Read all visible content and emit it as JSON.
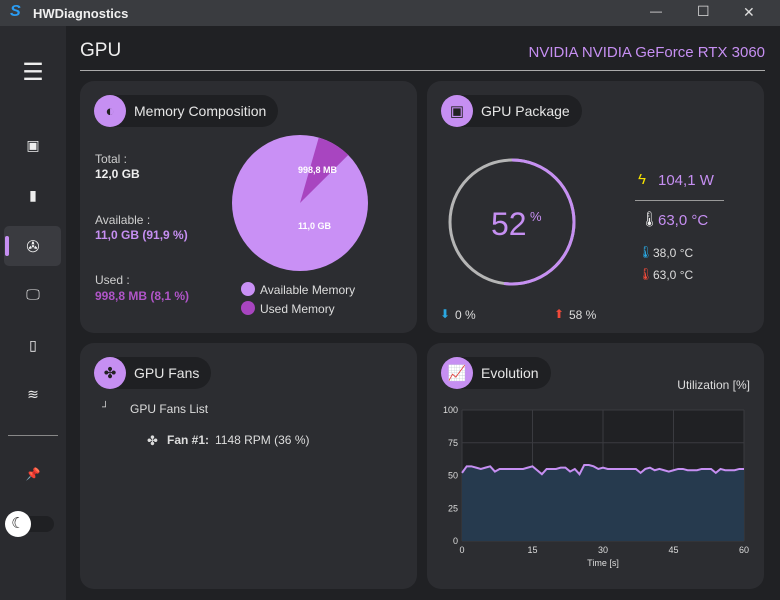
{
  "app": {
    "title": "HWDiagnostics"
  },
  "window_controls": {
    "minimize": "—",
    "maximize": "☐",
    "close": "✕"
  },
  "header": {
    "title": "GPU",
    "device": "NVIDIA NVIDIA GeForce RTX 3060"
  },
  "sidebar": {
    "items": [
      {
        "name": "menu",
        "icon": "☰"
      },
      {
        "name": "cpu",
        "icon": "▣"
      },
      {
        "name": "memory",
        "icon": "▮"
      },
      {
        "name": "gpu",
        "icon": "✇",
        "active": true
      },
      {
        "name": "display",
        "icon": "🖵"
      },
      {
        "name": "storage",
        "icon": "▯"
      },
      {
        "name": "network",
        "icon": "≋"
      },
      {
        "name": "pin",
        "icon": "📌"
      }
    ],
    "theme_icon": "☾"
  },
  "memory": {
    "title": "Memory Composition",
    "total_label": "Total :",
    "total": "12,0 GB",
    "available_label": "Available :",
    "available": "11,0 GB (91,9 %)",
    "used_label": "Used :",
    "used": "998,8 MB (8,1 %)",
    "pie_available_label": "11,0 GB",
    "pie_used_label": "998,8 MB",
    "legend_available": "Available Memory",
    "legend_used": "Used Memory",
    "available_pct": 91.9,
    "used_pct": 8.1,
    "color_available": "#c990f5",
    "color_used": "#a845c0"
  },
  "package": {
    "title": "GPU Package",
    "load": "52",
    "load_unit": "%",
    "load_pct": 52,
    "min_load": "0 %",
    "max_load": "58 %",
    "power": "104,1 W",
    "temp": "63,0 °C",
    "temp_min": "38,0 °C",
    "temp_max": "63,0 °C"
  },
  "fans": {
    "title": "GPU Fans",
    "list_label": "GPU Fans List",
    "items": [
      {
        "name": "Fan #1:",
        "value": "1148 RPM (36 %)"
      }
    ]
  },
  "evolution": {
    "title": "Evolution"
  },
  "chart_data": {
    "type": "area",
    "title": "Utilization [%]",
    "xlabel": "Time [s]",
    "ylabel": "",
    "xlim": [
      0,
      60
    ],
    "ylim": [
      0,
      100
    ],
    "xticks": [
      "0",
      "15",
      "30",
      "45",
      "60"
    ],
    "yticks": [
      "0",
      "25",
      "50",
      "75",
      "100"
    ],
    "grid": true,
    "series": [
      {
        "name": "Utilization",
        "color": "#c68ff2",
        "x_step": 1,
        "values": [
          52,
          57,
          57,
          56,
          55,
          56,
          57,
          53,
          55,
          55,
          55,
          55,
          55,
          55,
          56,
          57,
          54,
          51,
          55,
          55,
          55,
          56,
          56,
          53,
          55,
          51,
          58,
          58,
          57,
          55,
          56,
          55,
          55,
          55,
          55,
          55,
          55,
          55,
          52,
          55,
          56,
          54,
          55,
          54,
          53,
          54,
          55,
          55,
          54,
          54,
          54,
          55,
          55,
          55,
          52,
          55,
          54,
          54,
          54,
          55,
          55
        ]
      }
    ]
  }
}
